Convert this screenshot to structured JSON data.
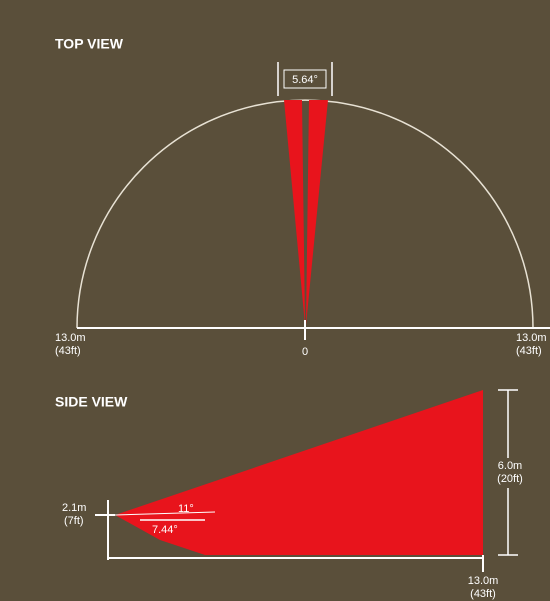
{
  "top_view": {
    "title": "TOP VIEW",
    "angle": "5.64°",
    "left_label": {
      "distance": "13.0m",
      "imperial": "(43ft)"
    },
    "center_label": "0",
    "right_label": {
      "distance": "13.0m",
      "imperial": "(43ft)"
    }
  },
  "side_view": {
    "title": "SIDE VIEW",
    "height_label": {
      "distance": "2.1m",
      "imperial": "(7ft)"
    },
    "upper_angle": "11°",
    "lower_angle": "7.44°",
    "range_height": {
      "distance": "6.0m",
      "imperial": "(20ft)"
    },
    "range_length": {
      "distance": "13.0m",
      "imperial": "(43ft)"
    }
  }
}
